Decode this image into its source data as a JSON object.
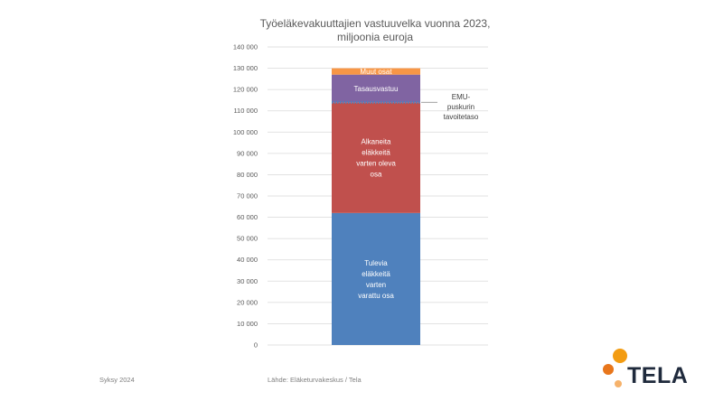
{
  "title_line1": "Työeläkevakuuttajien vastuuvelka vuonna  2023,",
  "title_line2": "miljoonia euroja",
  "footer_left": "Syksy 2024",
  "footer_source": "Lähde: Eläketurvakeskus / Tela",
  "logo_text": "TELA",
  "logo_colors": {
    "dot_large": "#f39c12",
    "dot_small": "#e8761b",
    "dot_accent": "#f6b26b",
    "text": "#1f2a3c"
  },
  "chart_data": {
    "type": "bar",
    "stacked": true,
    "ylim": [
      0,
      140000
    ],
    "yticks": [
      0,
      10000,
      20000,
      30000,
      40000,
      50000,
      60000,
      70000,
      80000,
      90000,
      100000,
      110000,
      120000,
      130000,
      140000
    ],
    "ytick_labels": [
      "0",
      "10 000",
      "20 000",
      "30 000",
      "40 000",
      "50 000",
      "60 000",
      "70 000",
      "80 000",
      "90 000",
      "100 000",
      "110 000",
      "120 000",
      "130 000",
      "140 000"
    ],
    "grid": true,
    "series": [
      {
        "name": "Tulevia eläkkeitä varten varattu osa",
        "value": 62000,
        "color": "#4f81bd",
        "label_lines": [
          "Tulevia",
          "eläkkeitä",
          "varten",
          "varattu osa"
        ]
      },
      {
        "name": "Alkaneita eläkkeitä varten oleva osa",
        "value": 52000,
        "color": "#c0504d",
        "label_lines": [
          "Alkaneita",
          "eläkkeitä",
          "varten oleva",
          "osa"
        ]
      },
      {
        "name": "Tasausvastuu",
        "value": 13000,
        "color": "#8064a2",
        "label_lines": [
          "Tasausvastuu"
        ]
      },
      {
        "name": "Muut osat",
        "value": 3000,
        "color": "#f79646",
        "label_lines": [
          "Muut osat"
        ]
      }
    ],
    "annotation": {
      "text_lines": [
        "EMU-",
        "puskurin",
        "tavoitetaso"
      ],
      "value": 114000,
      "line_color": "#4f81bd"
    }
  }
}
